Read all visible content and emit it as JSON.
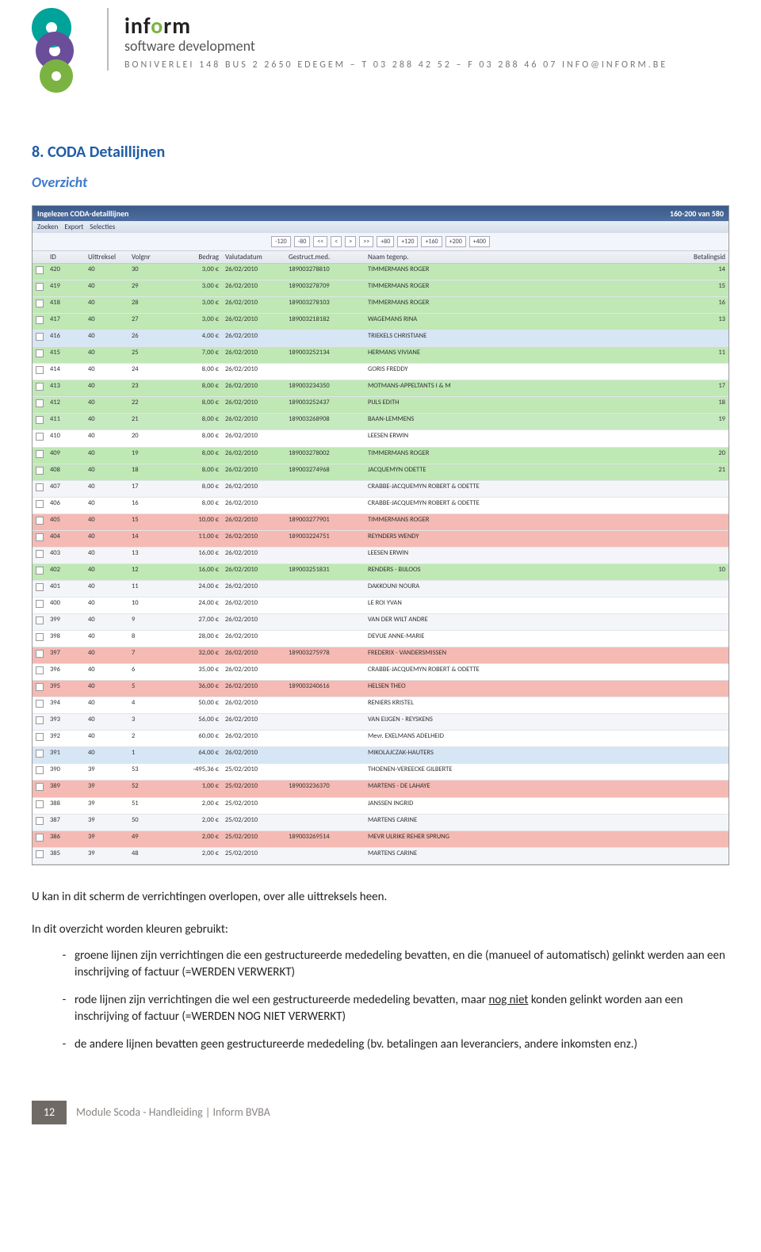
{
  "header": {
    "brand_parts": [
      "i",
      "n",
      "f",
      "o",
      "r",
      "m"
    ],
    "brand_sub": "software development",
    "address": "BONIVERLEI 148 BUS 2  2650 EDEGEM – T 03 288 42 52 – F 03 288 46 07  INFO@INFORM.BE"
  },
  "section": {
    "title": "8. CODA Detaillijnen",
    "subtitle": "Overzicht"
  },
  "app": {
    "title": "Ingelezen CODA-detaillijnen",
    "range": "160-200 van 580",
    "menu": [
      "Zoeken",
      "Export",
      "Selecties"
    ],
    "pager": [
      "-120",
      "-80",
      "<<",
      "<",
      ">",
      ">>",
      "+80",
      "+120",
      "+160",
      "+200",
      "+400"
    ],
    "columns": [
      "",
      "ID",
      "Uittreksel",
      "Volgnr",
      "Bedrag",
      "Valutadatum",
      "Gestruct.med.",
      "Naam tegenp.",
      "Betalingsid"
    ],
    "row_colors": {
      "green": "#bfe8b5",
      "green2": "#c6eac0",
      "blue": "#d6e6f5",
      "red": "#f4bab3",
      "white": "#fff",
      "alt": "#f3f5f8"
    },
    "rows": [
      {
        "c": "green",
        "id": "420",
        "u": "40",
        "v": "30",
        "b": "3,00 €",
        "d": "26/02/2010",
        "m": "189003278810",
        "n": "TIMMERMANS ROGER",
        "p": "14"
      },
      {
        "c": "green",
        "id": "419",
        "u": "40",
        "v": "29",
        "b": "3,00 €",
        "d": "26/02/2010",
        "m": "189003278709",
        "n": "TIMMERMANS ROGER",
        "p": "15"
      },
      {
        "c": "green",
        "id": "418",
        "u": "40",
        "v": "28",
        "b": "3,00 €",
        "d": "26/02/2010",
        "m": "189003278103",
        "n": "TIMMERMANS ROGER",
        "p": "16"
      },
      {
        "c": "green",
        "id": "417",
        "u": "40",
        "v": "27",
        "b": "3,00 €",
        "d": "26/02/2010",
        "m": "189003218182",
        "n": "WAGEMANS RINA",
        "p": "13"
      },
      {
        "c": "blue",
        "id": "416",
        "u": "40",
        "v": "26",
        "b": "4,00 €",
        "d": "26/02/2010",
        "m": "",
        "n": "TRIEKELS CHRISTIANE",
        "p": ""
      },
      {
        "c": "green",
        "id": "415",
        "u": "40",
        "v": "25",
        "b": "7,00 €",
        "d": "26/02/2010",
        "m": "189003252134",
        "n": "HERMANS VIVIANE",
        "p": "11"
      },
      {
        "c": "white",
        "id": "414",
        "u": "40",
        "v": "24",
        "b": "8,00 €",
        "d": "26/02/2010",
        "m": "",
        "n": "GORIS FREDDY",
        "p": ""
      },
      {
        "c": "green",
        "id": "413",
        "u": "40",
        "v": "23",
        "b": "8,00 €",
        "d": "26/02/2010",
        "m": "189003234350",
        "n": "MOTMANS-APPELTANTS I & M",
        "p": "17"
      },
      {
        "c": "green",
        "id": "412",
        "u": "40",
        "v": "22",
        "b": "8,00 €",
        "d": "26/02/2010",
        "m": "189003252437",
        "n": "PIJLS EDITH",
        "p": "18"
      },
      {
        "c": "green2",
        "id": "411",
        "u": "40",
        "v": "21",
        "b": "8,00 €",
        "d": "26/02/2010",
        "m": "189003268908",
        "n": "BAAN-LEMMENS",
        "p": "19"
      },
      {
        "c": "white",
        "id": "410",
        "u": "40",
        "v": "20",
        "b": "8,00 €",
        "d": "26/02/2010",
        "m": "",
        "n": "LEESEN ERWIN",
        "p": ""
      },
      {
        "c": "green",
        "id": "409",
        "u": "40",
        "v": "19",
        "b": "8,00 €",
        "d": "26/02/2010",
        "m": "189003278002",
        "n": "TIMMERMANS ROGER",
        "p": "20"
      },
      {
        "c": "green",
        "id": "408",
        "u": "40",
        "v": "18",
        "b": "8,00 €",
        "d": "26/02/2010",
        "m": "189003274968",
        "n": "JACQUEMYN ODETTE",
        "p": "21"
      },
      {
        "c": "alt",
        "id": "407",
        "u": "40",
        "v": "17",
        "b": "8,00 €",
        "d": "26/02/2010",
        "m": "",
        "n": "CRABBE-JACQUEMYN ROBERT & ODETTE",
        "p": ""
      },
      {
        "c": "white",
        "id": "406",
        "u": "40",
        "v": "16",
        "b": "8,00 €",
        "d": "26/02/2010",
        "m": "",
        "n": "CRABBE-JACQUEMYN ROBERT & ODETTE",
        "p": ""
      },
      {
        "c": "red",
        "id": "405",
        "u": "40",
        "v": "15",
        "b": "10,00 €",
        "d": "26/02/2010",
        "m": "189003277901",
        "n": "TIMMERMANS ROGER",
        "p": ""
      },
      {
        "c": "red",
        "id": "404",
        "u": "40",
        "v": "14",
        "b": "11,00 €",
        "d": "26/02/2010",
        "m": "189003224751",
        "n": "REYNDERS WENDY",
        "p": ""
      },
      {
        "c": "alt",
        "id": "403",
        "u": "40",
        "v": "13",
        "b": "16,00 €",
        "d": "26/02/2010",
        "m": "",
        "n": "LEESEN ERWIN",
        "p": ""
      },
      {
        "c": "green",
        "id": "402",
        "u": "40",
        "v": "12",
        "b": "16,00 €",
        "d": "26/02/2010",
        "m": "189003251831",
        "n": "RENDERS - BIJLOOS",
        "p": "10"
      },
      {
        "c": "alt",
        "id": "401",
        "u": "40",
        "v": "11",
        "b": "24,00 €",
        "d": "26/02/2010",
        "m": "",
        "n": "DAKKOUNI NOURA",
        "p": ""
      },
      {
        "c": "white",
        "id": "400",
        "u": "40",
        "v": "10",
        "b": "24,00 €",
        "d": "26/02/2010",
        "m": "",
        "n": "LE ROI YVAN",
        "p": ""
      },
      {
        "c": "alt",
        "id": "399",
        "u": "40",
        "v": "9",
        "b": "27,00 €",
        "d": "26/02/2010",
        "m": "",
        "n": "VAN DER WILT ANDRE",
        "p": ""
      },
      {
        "c": "white",
        "id": "398",
        "u": "40",
        "v": "8",
        "b": "28,00 €",
        "d": "26/02/2010",
        "m": "",
        "n": "DEVUE ANNE-MARIE",
        "p": ""
      },
      {
        "c": "red",
        "id": "397",
        "u": "40",
        "v": "7",
        "b": "32,00 €",
        "d": "26/02/2010",
        "m": "189003275978",
        "n": "FREDERIX - VANDERSMISSEN",
        "p": ""
      },
      {
        "c": "white",
        "id": "396",
        "u": "40",
        "v": "6",
        "b": "35,00 €",
        "d": "26/02/2010",
        "m": "",
        "n": "CRABBE-JACQUEMYN ROBERT & ODETTE",
        "p": ""
      },
      {
        "c": "red",
        "id": "395",
        "u": "40",
        "v": "5",
        "b": "36,00 €",
        "d": "26/02/2010",
        "m": "189003240616",
        "n": "HELSEN THEO",
        "p": ""
      },
      {
        "c": "white",
        "id": "394",
        "u": "40",
        "v": "4",
        "b": "50,00 €",
        "d": "26/02/2010",
        "m": "",
        "n": "RENIERS KRISTEL",
        "p": ""
      },
      {
        "c": "alt",
        "id": "393",
        "u": "40",
        "v": "3",
        "b": "56,00 €",
        "d": "26/02/2010",
        "m": "",
        "n": "VAN EIJGEN - REYSKENS",
        "p": ""
      },
      {
        "c": "white",
        "id": "392",
        "u": "40",
        "v": "2",
        "b": "60,00 €",
        "d": "26/02/2010",
        "m": "",
        "n": "Mevr. EXELMANS ADELHEID",
        "p": ""
      },
      {
        "c": "blue",
        "id": "391",
        "u": "40",
        "v": "1",
        "b": "64,00 €",
        "d": "26/02/2010",
        "m": "",
        "n": "MIKOLAJCZAK-HAUTERS",
        "p": ""
      },
      {
        "c": "white",
        "id": "390",
        "u": "39",
        "v": "53",
        "b": "-495,36 €",
        "d": "25/02/2010",
        "m": "",
        "n": "THOENEN-VEREECKE GILBERTE",
        "p": ""
      },
      {
        "c": "red",
        "id": "389",
        "u": "39",
        "v": "52",
        "b": "1,00 €",
        "d": "25/02/2010",
        "m": "189003236370",
        "n": "MARTENS - DE LAHAYE",
        "p": ""
      },
      {
        "c": "white",
        "id": "388",
        "u": "39",
        "v": "51",
        "b": "2,00 €",
        "d": "25/02/2010",
        "m": "",
        "n": "JANSSEN INGRID",
        "p": ""
      },
      {
        "c": "alt",
        "id": "387",
        "u": "39",
        "v": "50",
        "b": "2,00 €",
        "d": "25/02/2010",
        "m": "",
        "n": "MARTENS CARINE",
        "p": ""
      },
      {
        "c": "red",
        "id": "386",
        "u": "39",
        "v": "49",
        "b": "2,00 €",
        "d": "25/02/2010",
        "m": "189003269514",
        "n": "MEVR ULRIKE REHER SPRUNG",
        "p": ""
      },
      {
        "c": "alt",
        "id": "385",
        "u": "39",
        "v": "48",
        "b": "2,00 €",
        "d": "25/02/2010",
        "m": "",
        "n": "MARTENS CARINE",
        "p": ""
      }
    ]
  },
  "body": {
    "p1": "U kan in dit scherm de verrichtingen overlopen, over alle uittreksels heen.",
    "p2": "In dit overzicht worden kleuren gebruikt:",
    "li1": "groene lijnen zijn verrichtingen die een gestructureerde mededeling bevatten, en die (manueel of automatisch) gelinkt werden aan een inschrijving of factuur (=WERDEN VERWERKT)",
    "li2a": "rode lijnen zijn verrichtingen die wel een gestructureerde mededeling bevatten, maar ",
    "li2b": "nog niet",
    "li2c": " konden gelinkt worden aan een inschrijving of factuur (=WERDEN NOG NIET VERWERKT)",
    "li3": "de andere lijnen bevatten geen gestructureerde mededeling (bv. betalingen aan leveranciers, andere inkomsten enz.)"
  },
  "footer": {
    "page": "12",
    "text": "Module Scoda - Handleiding | Inform BVBA"
  }
}
